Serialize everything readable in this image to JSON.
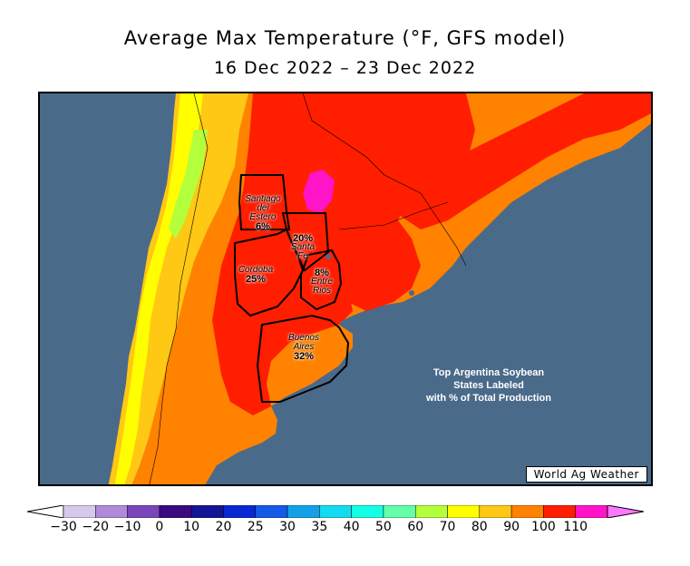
{
  "title": "Average Max Temperature (°F, GFS model)",
  "subtitle": "16 Dec 2022 – 23 Dec 2022",
  "states": [
    {
      "name": "Santiago\ndel\nEstero",
      "pct": "6%"
    },
    {
      "name": "Santa\nFe",
      "pct": "20%"
    },
    {
      "name": "Cordoba",
      "pct": "25%"
    },
    {
      "name": "Entre\nRios",
      "pct": "8%"
    },
    {
      "name": "Buenos\nAires",
      "pct": "32%"
    }
  ],
  "note": "Top Argentina Soybean\nStates Labeled\nwith % of Total Production",
  "credit": "World Ag Weather",
  "legend": {
    "ticks": [
      "-30",
      "-20",
      "-10",
      "0",
      "10",
      "20",
      "25",
      "30",
      "35",
      "40",
      "50",
      "60",
      "70",
      "80",
      "90",
      "100",
      "110"
    ],
    "colors": [
      "#d8c8ec",
      "#b08ad8",
      "#7a45b8",
      "#3a0a80",
      "#141496",
      "#0a28d2",
      "#145ae6",
      "#14a0e6",
      "#14dcf0",
      "#14ffe6",
      "#64ffaa",
      "#b4ff3c",
      "#ffff00",
      "#ffc814",
      "#ff8200",
      "#ff1e00",
      "#ff14c8"
    ],
    "low_arrow_color": "#ffffff",
    "high_arrow_color": "#ff78ff"
  },
  "colors": {
    "ocean": "#4a6a8a",
    "land_hot": "#ff1e00",
    "land_warm": "#ff8200",
    "land_mild": "#ffc814",
    "land_cool": "#ffff00",
    "land_cold": "#b4ff3c",
    "hotspot": "#ff14c8"
  }
}
